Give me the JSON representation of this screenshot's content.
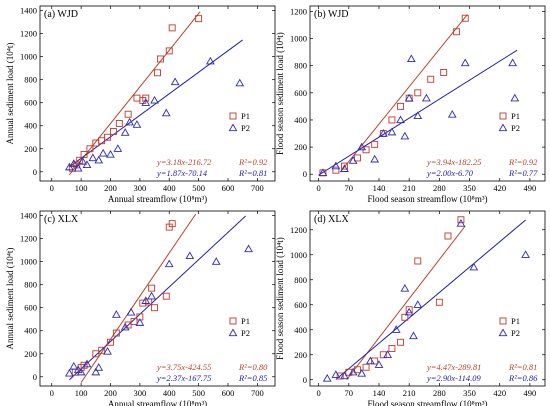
{
  "colors": {
    "p1": "#c0392b",
    "p2": "#2b2bb8",
    "fit1": "#b5442a",
    "fit2": "#2020b0"
  },
  "chart_data": [
    {
      "type": "scatter",
      "panel_label": "(a) WJD",
      "xlabel": "Annual streamflow (10⁸m³)",
      "ylabel": "Annual sediment load (10⁴t)",
      "xlim": [
        -40,
        760
      ],
      "ylim": [
        -80,
        1440
      ],
      "xticks": [
        0,
        100,
        200,
        300,
        400,
        500,
        600,
        700
      ],
      "yticks": [
        0,
        200,
        400,
        600,
        800,
        1000,
        1200,
        1400
      ],
      "series": [
        {
          "name": "P1",
          "marker": "square",
          "x": [
            70,
            85,
            95,
            110,
            130,
            150,
            170,
            190,
            210,
            230,
            260,
            290,
            310,
            320,
            360,
            370,
            400,
            410,
            500
          ],
          "y": [
            30,
            60,
            100,
            150,
            200,
            250,
            270,
            300,
            350,
            420,
            500,
            640,
            620,
            640,
            860,
            980,
            1050,
            1250,
            1330
          ]
        },
        {
          "name": "P2",
          "marker": "triangle",
          "x": [
            60,
            75,
            90,
            105,
            120,
            140,
            160,
            175,
            200,
            225,
            250,
            265,
            290,
            320,
            350,
            390,
            420,
            540,
            640
          ],
          "y": [
            40,
            70,
            30,
            90,
            60,
            120,
            100,
            160,
            150,
            200,
            340,
            430,
            410,
            600,
            620,
            510,
            780,
            960,
            770
          ]
        }
      ],
      "fits": [
        {
          "series": "P1",
          "equation": "y=3.18x-216.72",
          "r2": "R²=0.92",
          "x_range": [
            60,
            505
          ]
        },
        {
          "series": "P2",
          "equation": "y=1.87x-70.14",
          "r2": "R²=0.81",
          "x_range": [
            60,
            650
          ]
        }
      ],
      "legend": [
        "P1",
        "P2"
      ]
    },
    {
      "type": "scatter",
      "panel_label": "(b) WJD",
      "xlabel": "Flood season streamflow (10⁸m³)",
      "ylabel": "Flood season sediment load (10⁴t)",
      "xlim": [
        -20,
        525
      ],
      "ylim": [
        -50,
        1240
      ],
      "xticks": [
        0,
        70,
        140,
        210,
        280,
        350,
        420,
        490
      ],
      "yticks": [
        0,
        200,
        400,
        600,
        800,
        1000,
        1200
      ],
      "series": [
        {
          "name": "P1",
          "marker": "square",
          "x": [
            10,
            40,
            60,
            90,
            110,
            130,
            150,
            170,
            190,
            210,
            230,
            260,
            290,
            320,
            340
          ],
          "y": [
            10,
            30,
            60,
            120,
            180,
            220,
            300,
            400,
            500,
            560,
            600,
            700,
            750,
            1050,
            1150
          ]
        },
        {
          "name": "P2",
          "marker": "triangle",
          "x": [
            10,
            40,
            60,
            80,
            100,
            130,
            150,
            170,
            190,
            200,
            210,
            215,
            230,
            250,
            310,
            340,
            450,
            455
          ],
          "y": [
            10,
            60,
            40,
            100,
            200,
            110,
            300,
            310,
            400,
            280,
            560,
            850,
            430,
            560,
            440,
            820,
            820,
            560
          ]
        }
      ],
      "fits": [
        {
          "series": "P1",
          "equation": "y=3.94x-182.25",
          "r2": "R²=0.92",
          "x_range": [
            50,
            345
          ]
        },
        {
          "series": "P2",
          "equation": "y=2.00x-6.70",
          "r2": "R²=0.77",
          "x_range": [
            0,
            460
          ]
        }
      ],
      "legend": [
        "P1",
        "P2"
      ]
    },
    {
      "type": "scatter",
      "panel_label": "(c) XLX",
      "xlabel": "Annual streamflow (10⁸m³)",
      "ylabel": "Annual sediment load (10⁴t)",
      "xlim": [
        -40,
        760
      ],
      "ylim": [
        -80,
        1440
      ],
      "xticks": [
        0,
        100,
        200,
        300,
        400,
        500,
        600,
        700
      ],
      "yticks": [
        0,
        200,
        400,
        600,
        800,
        1000,
        1200,
        1400
      ],
      "series": [
        {
          "name": "P1",
          "marker": "square",
          "x": [
            80,
            100,
            110,
            150,
            170,
            200,
            220,
            260,
            280,
            300,
            310,
            330,
            340,
            350,
            390,
            400,
            410
          ],
          "y": [
            40,
            80,
            100,
            200,
            230,
            300,
            380,
            450,
            480,
            520,
            640,
            650,
            770,
            600,
            700,
            1300,
            1330
          ]
        },
        {
          "name": "P2",
          "marker": "triangle",
          "x": [
            60,
            75,
            90,
            100,
            120,
            150,
            160,
            190,
            220,
            250,
            270,
            300,
            320,
            340,
            400,
            470,
            560,
            670
          ],
          "y": [
            30,
            90,
            60,
            40,
            110,
            40,
            80,
            220,
            540,
            430,
            560,
            470,
            660,
            700,
            980,
            1050,
            1000,
            1110
          ]
        }
      ],
      "fits": [
        {
          "series": "P1",
          "equation": "y=3.75x-424.55",
          "r2": "R²=0.80",
          "x_range": [
            100,
            490
          ]
        },
        {
          "series": "P2",
          "equation": "y=2.37x-167.75",
          "r2": "R²=0.85",
          "x_range": [
            60,
            660
          ]
        }
      ],
      "legend": [
        "P1",
        "P2"
      ]
    },
    {
      "type": "scatter",
      "panel_label": "(d) XLX",
      "xlabel": "Flood season streamflow (10⁸m³)",
      "ylabel": "Flood season sediment load (10⁴t)",
      "xlim": [
        -20,
        525
      ],
      "ylim": [
        -50,
        1350
      ],
      "xticks": [
        0,
        70,
        140,
        210,
        280,
        350,
        420,
        490
      ],
      "yticks": [
        0,
        200,
        400,
        600,
        800,
        1000,
        1200
      ],
      "series": [
        {
          "name": "P1",
          "marker": "square",
          "x": [
            50,
            70,
            90,
            110,
            130,
            150,
            170,
            190,
            200,
            210,
            230,
            280,
            300,
            330
          ],
          "y": [
            30,
            60,
            80,
            100,
            150,
            200,
            250,
            300,
            500,
            560,
            950,
            620,
            1150,
            1280
          ]
        },
        {
          "name": "P2",
          "marker": "triangle",
          "x": [
            20,
            40,
            60,
            80,
            100,
            120,
            140,
            160,
            180,
            200,
            210,
            220,
            230,
            330,
            360,
            480
          ],
          "y": [
            10,
            40,
            30,
            60,
            50,
            150,
            120,
            200,
            400,
            730,
            540,
            350,
            600,
            1250,
            900,
            1000
          ]
        }
      ],
      "fits": [
        {
          "series": "P1",
          "equation": "y=4.47x-289.81",
          "r2": "R²=0.81",
          "x_range": [
            65,
            340
          ]
        },
        {
          "series": "P2",
          "equation": "y=2.90x-114.09",
          "r2": "R²=0.86",
          "x_range": [
            40,
            480
          ]
        }
      ],
      "legend": [
        "P1",
        "P2"
      ]
    }
  ]
}
